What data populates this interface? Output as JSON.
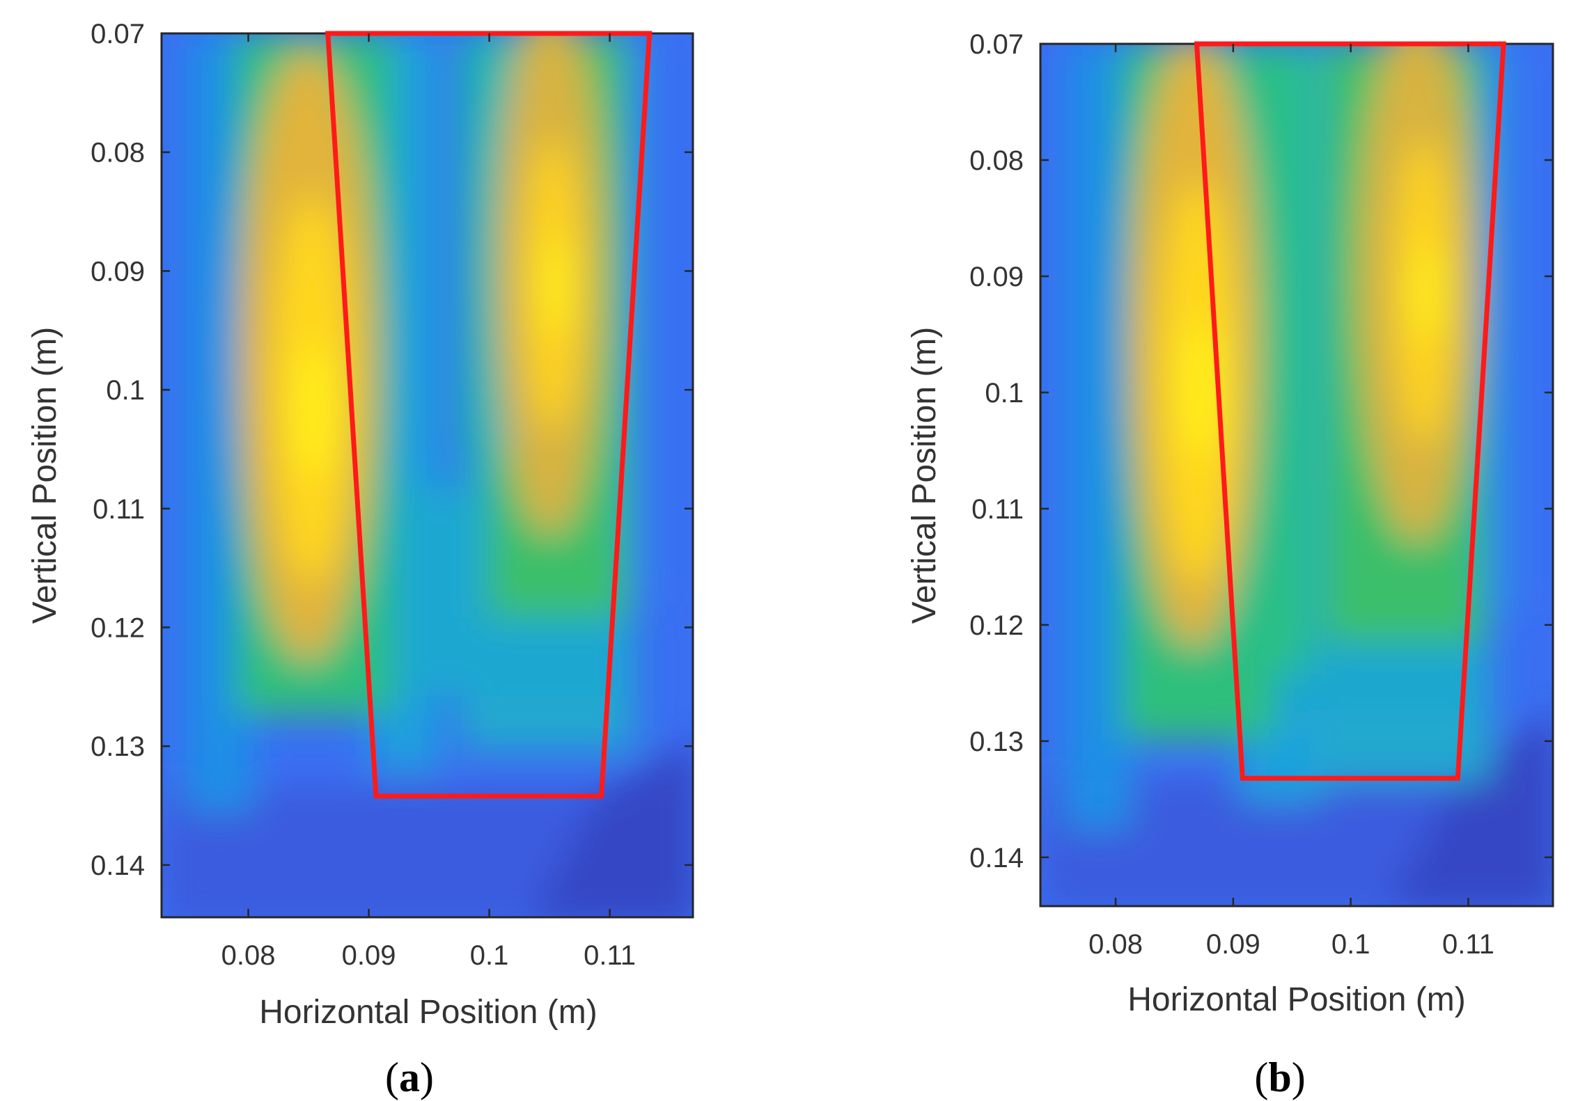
{
  "chart_data": [
    {
      "type": "heatmap",
      "panel_label": "a",
      "title": "",
      "xlabel": "Horizontal Position (m)",
      "ylabel": "Vertical Position (m)",
      "xlim": [
        0.0728,
        0.1169
      ],
      "ylim": [
        0.07,
        0.1444
      ],
      "y_reversed": true,
      "xticks": [
        0.08,
        0.09,
        0.1,
        0.11
      ],
      "xtick_labels": [
        "0.08",
        "0.09",
        "0.1",
        "0.11"
      ],
      "yticks": [
        0.07,
        0.08,
        0.09,
        0.1,
        0.11,
        0.12,
        0.13,
        0.14
      ],
      "ytick_labels": [
        "0.07",
        "0.08",
        "0.09",
        "0.1",
        "0.11",
        "0.12",
        "0.13",
        "0.14"
      ],
      "colormap": "parula",
      "hot_spots": [
        {
          "x": 0.0855,
          "y": 0.1,
          "value": 1.0
        },
        {
          "x": 0.106,
          "y": 0.093,
          "value": 0.95
        }
      ],
      "overlay_outline": {
        "color": "#ff1a1a",
        "points": [
          [
            0.0866,
            0.07
          ],
          [
            0.1133,
            0.07
          ],
          [
            0.1093,
            0.1342
          ],
          [
            0.0906,
            0.1342
          ]
        ]
      }
    },
    {
      "type": "heatmap",
      "panel_label": "b",
      "title": "",
      "xlabel": "Horizontal Position (m)",
      "ylabel": "Vertical Position (m)",
      "xlim": [
        0.0736,
        0.1172
      ],
      "ylim": [
        0.07,
        0.1442
      ],
      "y_reversed": true,
      "xticks": [
        0.08,
        0.09,
        0.1,
        0.11
      ],
      "xtick_labels": [
        "0.08",
        "0.09",
        "0.1",
        "0.11"
      ],
      "yticks": [
        0.07,
        0.08,
        0.09,
        0.1,
        0.11,
        0.12,
        0.13,
        0.14
      ],
      "ytick_labels": [
        "0.07",
        "0.08",
        "0.09",
        "0.1",
        "0.11",
        "0.12",
        "0.13",
        "0.14"
      ],
      "colormap": "parula",
      "hot_spots": [
        {
          "x": 0.0867,
          "y": 0.099,
          "value": 1.0
        },
        {
          "x": 0.1066,
          "y": 0.093,
          "value": 0.95
        }
      ],
      "overlay_outline": {
        "color": "#ff1a1a",
        "points": [
          [
            0.0869,
            0.07
          ],
          [
            0.113,
            0.07
          ],
          [
            0.1091,
            0.1332
          ],
          [
            0.0908,
            0.1332
          ]
        ]
      }
    }
  ]
}
